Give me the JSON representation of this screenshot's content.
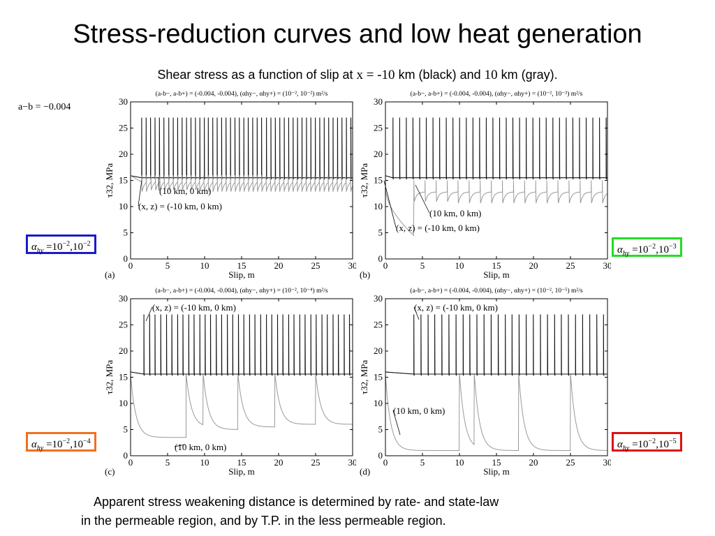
{
  "slide": {
    "title": "Stress-reduction curves and low heat generation",
    "subtitle_pre": "Shear stress as a function of slip at ",
    "subtitle_math": "x = -10",
    "subtitle_mid": " km (black) and ",
    "subtitle_math2": "10",
    "subtitle_post": " km (gray).",
    "ab_note": "a−b = −0.004",
    "bottom_line1": "Apparent stress weakening distance is determined by rate- and state-law",
    "bottom_line2": "in the permeable region, and by T.P. in the less permeable region."
  },
  "alpha_labels": [
    {
      "exp1": "−2",
      "exp2": "−2",
      "color": "#1a1acc"
    },
    {
      "exp1": "−2",
      "exp2": "−3",
      "color": "#22dd22"
    },
    {
      "exp1": "−2",
      "exp2": "−4",
      "color": "#f07020"
    },
    {
      "exp1": "−2",
      "exp2": "−5",
      "color": "#dd1111"
    }
  ],
  "colors": {
    "black_curve": "#111111",
    "gray_curve": "#999999"
  },
  "chart_data": [
    {
      "type": "line",
      "panel_label": "(a)",
      "header": "(a-b−, a-b+) = (-0.004, -0.004), (αhy−, αhy+) = (10⁻², 10⁻²) m²/s",
      "xlabel": "Slip, m",
      "ylabel": "τ32, MPa",
      "xlim": [
        0,
        30
      ],
      "ylim": [
        0,
        30
      ],
      "xticks": [
        0,
        5,
        10,
        15,
        20,
        25,
        30
      ],
      "yticks": [
        0,
        5,
        10,
        15,
        20,
        25,
        30
      ],
      "annotations": [
        "(10 km, 0 km)",
        "(x, z) = (-10 km, 0 km)"
      ],
      "series": [
        {
          "color": "black",
          "description_values": {
            "baseline": 15.5,
            "peak": 27.0,
            "first_event": 1.5,
            "spacing": 0.6
          }
        },
        {
          "color": "gray",
          "description_values": {
            "baseline": 14.7,
            "peak": 16.0,
            "first_event": 1.5,
            "spacing": 0.6
          }
        }
      ]
    },
    {
      "type": "line",
      "panel_label": "(b)",
      "header": "(a-b−, a-b+) = (-0.004, -0.004), (αhy−, αhy+) = (10⁻², 10⁻³) m²/s",
      "xlabel": "Slip, m",
      "ylabel": "τ32, MPa",
      "xlim": [
        0,
        30
      ],
      "ylim": [
        0,
        30
      ],
      "xticks": [
        0,
        5,
        10,
        15,
        20,
        25,
        30
      ],
      "yticks": [
        0,
        5,
        10,
        15,
        20,
        25,
        30
      ],
      "annotations": [
        "(10 km, 0 km)",
        "(x, z) = (-10 km, 0 km)"
      ],
      "series": [
        {
          "color": "black",
          "description_values": {
            "baseline": 15.5,
            "peak": 27.0,
            "first_event": 1.0,
            "spacing": 0.9
          }
        },
        {
          "color": "gray",
          "description_values": {
            "baseline": 12.5,
            "peak": 15.0,
            "first_event": 3.8,
            "spacing": 1.5
          }
        }
      ]
    },
    {
      "type": "line",
      "panel_label": "(c)",
      "header": "(a-b−, a-b+) = (-0.004, -0.004), (αhy−, αhy+) = (10⁻², 10⁻⁴) m²/s",
      "xlabel": "Slip, m",
      "ylabel": "τ32, MPa",
      "xlim": [
        0,
        30
      ],
      "ylim": [
        0,
        30
      ],
      "xticks": [
        0,
        5,
        10,
        15,
        20,
        25,
        30
      ],
      "yticks": [
        0,
        5,
        10,
        15,
        20,
        25,
        30
      ],
      "annotations": [
        "(x, z) = (-10 km, 0 km)",
        "(10 km, 0 km)"
      ],
      "series": [
        {
          "color": "black",
          "description_values": {
            "baseline": 15.6,
            "peak": 27.0,
            "first_event": 1.8,
            "spacing": 0.75
          }
        },
        {
          "color": "gray",
          "events": [
            7.5,
            9.8,
            14.5,
            19.5,
            25.0
          ],
          "minima": [
            3.5,
            5.5,
            5.0,
            5.5,
            6.0
          ]
        }
      ]
    },
    {
      "type": "line",
      "panel_label": "(d)",
      "header": "(a-b−, a-b+) = (-0.004, -0.004), (αhy−, αhy+) = (10⁻², 10⁻⁵) m²/s",
      "xlabel": "Slip, m",
      "ylabel": "τ32, MPa",
      "xlim": [
        0,
        30
      ],
      "ylim": [
        0,
        30
      ],
      "xticks": [
        0,
        5,
        10,
        15,
        20,
        25,
        30
      ],
      "yticks": [
        0,
        5,
        10,
        15,
        20,
        25,
        30
      ],
      "annotations": [
        "(x, z) = (-10 km, 0 km)",
        "(10 km, 0 km)"
      ],
      "series": [
        {
          "color": "black",
          "description_values": {
            "baseline": 15.6,
            "peak": 27.0,
            "first_event": 3.8,
            "spacing": 0.95
          }
        },
        {
          "color": "gray",
          "events": [
            10.0,
            12.0,
            18.0,
            25.0
          ],
          "minima": [
            1.0,
            1.2,
            1.0,
            1.0
          ]
        }
      ]
    }
  ]
}
